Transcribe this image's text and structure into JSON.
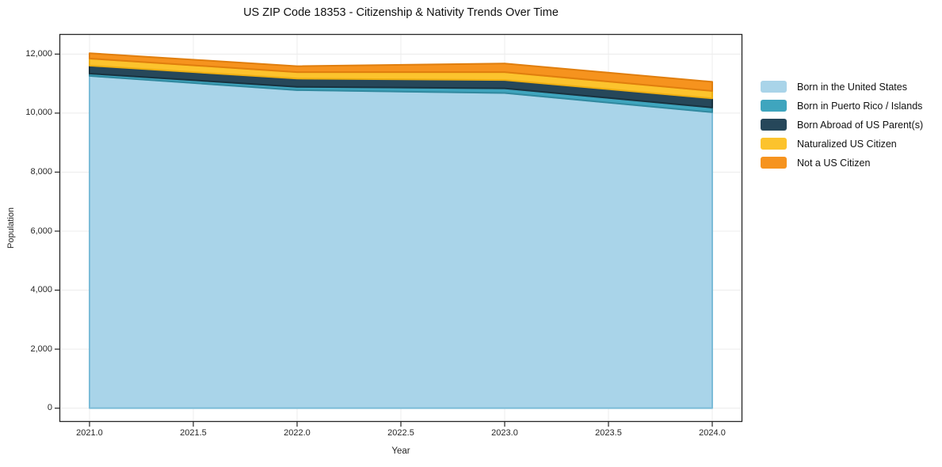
{
  "chart_data": {
    "type": "area",
    "stacked": true,
    "title": "US ZIP Code 18353 - Citizenship & Nativity Trends Over Time",
    "xlabel": "Year",
    "ylabel": "Population",
    "x": [
      2021,
      2022,
      2023,
      2024
    ],
    "series": [
      {
        "name": "Born in the United States",
        "color": "#a9d4e9",
        "edge": "#7bbcd8",
        "values": [
          11260,
          10780,
          10680,
          10030
        ]
      },
      {
        "name": "Born in Puerto Rico / Islands",
        "color": "#3fa5be",
        "edge": "#31899f",
        "values": [
          80,
          110,
          160,
          160
        ]
      },
      {
        "name": "Born Abroad of US Parent(s)",
        "color": "#26475a",
        "edge": "#19323f",
        "values": [
          270,
          280,
          280,
          310
        ]
      },
      {
        "name": "Naturalized US Citizen",
        "color": "#fcc32d",
        "edge": "#edae12",
        "values": [
          240,
          220,
          270,
          250
        ]
      },
      {
        "name": "Not a US Citizen",
        "color": "#f6931e",
        "edge": "#e07e0d",
        "values": [
          180,
          200,
          290,
          310
        ]
      }
    ],
    "stack_totals": [
      12030,
      11590,
      11680,
      11060
    ],
    "xticks": [
      2021.0,
      2021.5,
      2022.0,
      2022.5,
      2023.0,
      2023.5,
      2024.0
    ],
    "xtick_labels": [
      "2021.0",
      "2021.5",
      "2022.0",
      "2022.5",
      "2023.0",
      "2023.5",
      "2024.0"
    ],
    "yticks": [
      0,
      2000,
      4000,
      6000,
      8000,
      10000,
      12000
    ],
    "ytick_labels": [
      "0",
      "2,000",
      "4,000",
      "6,000",
      "8,000",
      "10,000",
      "12,000"
    ],
    "xlim": [
      2020.855,
      2024.145
    ],
    "ylim": [
      -465,
      12680
    ],
    "grid": true,
    "legend_position": "right-outside",
    "style": {
      "grid_color": "#ececec",
      "spine_color": "#262626",
      "tick_color": "#262626",
      "background": "#ffffff"
    }
  }
}
